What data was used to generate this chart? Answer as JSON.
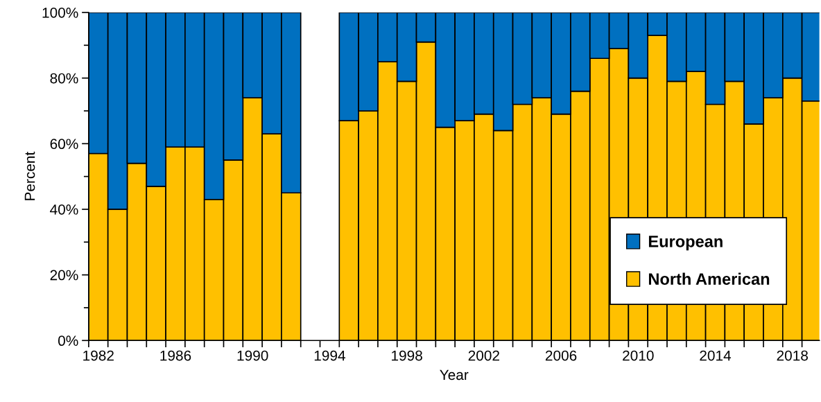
{
  "chart_data": {
    "type": "bar",
    "stacked": true,
    "xlabel": "Year",
    "ylabel": "Percent",
    "x": [
      1982,
      1983,
      1984,
      1985,
      1986,
      1987,
      1988,
      1989,
      1990,
      1991,
      1992,
      1995,
      1996,
      1997,
      1998,
      1999,
      2000,
      2001,
      2002,
      2003,
      2004,
      2005,
      2006,
      2007,
      2008,
      2009,
      2010,
      2011,
      2012,
      2013,
      2014,
      2015,
      2016,
      2017,
      2018,
      2019
    ],
    "series": [
      {
        "name": "North American",
        "color": "#ffc000",
        "values": [
          57,
          40,
          54,
          47,
          59,
          59,
          43,
          55,
          74,
          63,
          45,
          67,
          70,
          85,
          79,
          91,
          65,
          67,
          69,
          64,
          72,
          74,
          69,
          76,
          86,
          89,
          80,
          93,
          79,
          82,
          72,
          79,
          66,
          74,
          80,
          73
        ]
      },
      {
        "name": "European",
        "color": "#0070c0",
        "values": [
          43,
          60,
          46,
          53,
          41,
          41,
          57,
          45,
          26,
          37,
          55,
          33,
          30,
          15,
          21,
          9,
          35,
          33,
          31,
          36,
          28,
          26,
          31,
          24,
          14,
          11,
          20,
          7,
          21,
          18,
          28,
          21,
          34,
          26,
          20,
          27
        ]
      }
    ],
    "xlim": [
      1981.5,
      2019.4
    ],
    "xticks": [
      1982,
      1986,
      1990,
      1994,
      1998,
      2002,
      2006,
      2010,
      2014,
      2018
    ],
    "ylim": [
      0,
      100
    ],
    "yticks": [
      {
        "value": 0,
        "label": "0%"
      },
      {
        "value": 20,
        "label": "20%"
      },
      {
        "value": 40,
        "label": "40%"
      },
      {
        "value": 60,
        "label": "60%"
      },
      {
        "value": 80,
        "label": "80%"
      },
      {
        "value": 100,
        "label": "100%"
      }
    ],
    "grid": false,
    "legend": "bottom right"
  }
}
